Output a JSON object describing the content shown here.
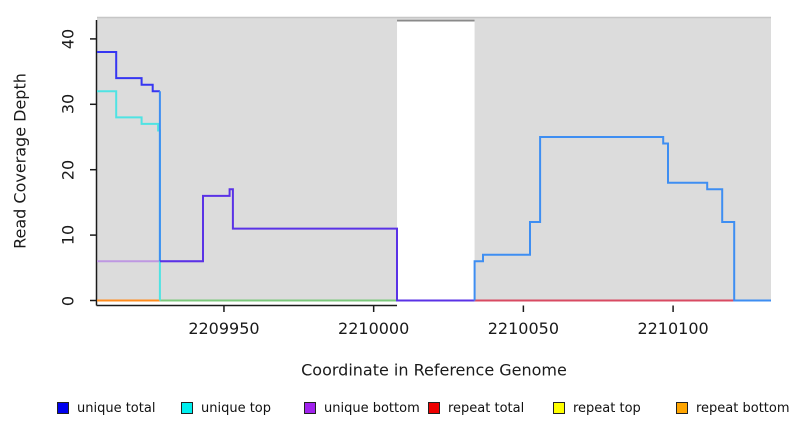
{
  "chart_data": {
    "type": "line",
    "subtype": "step-coverage",
    "title": "",
    "xlabel": "Coordinate in Reference Genome",
    "ylabel": "Read Coverage Depth",
    "xlim": [
      2209907.6,
      2210132.7
    ],
    "ylim": [
      0,
      43.2
    ],
    "x_ticks": [
      "2209950",
      "2210000",
      "2210050",
      "2210100"
    ],
    "x_tick_values": [
      2209950,
      2210000,
      2210050,
      2210100
    ],
    "y_ticks": [
      "0",
      "10",
      "20",
      "30",
      "40"
    ],
    "y_tick_values": [
      0,
      10,
      20,
      30,
      40
    ],
    "grid": false,
    "panel_background": "#DCDCDC",
    "panel_top_edge_color": "#C6C6C6",
    "gap_region": {
      "from": 2210007.8,
      "to": 2210033.7,
      "fill": "#FFFFFF",
      "top_border_color": "#8A8A8A"
    },
    "legend_position": "bottom",
    "legend": [
      {
        "label": "unique total",
        "color": "#0000EE"
      },
      {
        "label": "unique top",
        "color": "#00EEEE"
      },
      {
        "label": "unique bottom",
        "color": "#A122EE"
      },
      {
        "label": "repeat total",
        "color": "#EE0000"
      },
      {
        "label": "repeat top",
        "color": "#FFFF00"
      },
      {
        "label": "repeat bottom",
        "color": "#FFA500"
      }
    ],
    "series": [
      {
        "name": "unique-bottom-level-6",
        "legend_ref": "unique bottom",
        "color": "#BE98E2",
        "points": [
          [
            2209907.6,
            6
          ],
          [
            2209943,
            6
          ]
        ]
      },
      {
        "name": "repeat-bottom-zero",
        "legend_ref": "repeat bottom",
        "color": "#FF8C1E",
        "points": [
          [
            2209907.6,
            0
          ],
          [
            2209928.6,
            0
          ]
        ]
      },
      {
        "name": "zero-line-mid",
        "legend_ref": null,
        "color": "#7CC87C",
        "points": [
          [
            2209928.6,
            0
          ],
          [
            2210007.8,
            0
          ]
        ]
      },
      {
        "name": "repeat-total-zero",
        "legend_ref": "repeat total",
        "color": "#D84A62",
        "points": [
          [
            2210033.7,
            0
          ],
          [
            2210132.7,
            0
          ]
        ]
      },
      {
        "name": "unique-top",
        "legend_ref": "unique top",
        "color": "#4FE3E3",
        "points": [
          [
            2209907.6,
            32
          ],
          [
            2209914,
            32
          ],
          [
            2209914,
            28
          ],
          [
            2209922.5,
            28
          ],
          [
            2209922.5,
            27
          ],
          [
            2209928,
            27
          ],
          [
            2209928,
            26
          ],
          [
            2209928.6,
            26
          ],
          [
            2209928.6,
            0
          ]
        ]
      },
      {
        "name": "unique-total-left",
        "legend_ref": "unique total",
        "color": "#3636F2",
        "points": [
          [
            2209907.6,
            38
          ],
          [
            2209914,
            38
          ],
          [
            2209914,
            34
          ],
          [
            2209922.5,
            34
          ],
          [
            2209922.5,
            33
          ],
          [
            2209926.2,
            33
          ],
          [
            2209926.2,
            32
          ],
          [
            2209928.6,
            32
          ]
        ]
      },
      {
        "name": "unique-total-drop",
        "legend_ref": "unique total",
        "color": "#3E8EF2",
        "points": [
          [
            2209928.6,
            32
          ],
          [
            2209928.6,
            6
          ]
        ]
      },
      {
        "name": "unique-total-mid",
        "legend_ref": "unique total",
        "color": "#5A32E6",
        "points": [
          [
            2209928.6,
            6
          ],
          [
            2209943,
            6
          ],
          [
            2209943,
            16
          ],
          [
            2209951.9,
            16
          ],
          [
            2209951.9,
            17
          ],
          [
            2209953,
            17
          ],
          [
            2209953,
            11
          ],
          [
            2210007.8,
            11
          ],
          [
            2210007.8,
            0
          ],
          [
            2210033.7,
            0
          ]
        ]
      },
      {
        "name": "unique-total-right",
        "legend_ref": "unique total",
        "color": "#3E8EF2",
        "points": [
          [
            2210033.7,
            0
          ],
          [
            2210033.7,
            6
          ],
          [
            2210036.5,
            6
          ],
          [
            2210036.5,
            7
          ],
          [
            2210052.2,
            7
          ],
          [
            2210052.2,
            12
          ],
          [
            2210055.6,
            12
          ],
          [
            2210055.6,
            25
          ],
          [
            2210096.7,
            25
          ],
          [
            2210096.7,
            24
          ],
          [
            2210098.3,
            24
          ],
          [
            2210098.3,
            18
          ],
          [
            2210111.4,
            18
          ],
          [
            2210111.4,
            17
          ],
          [
            2210116.4,
            17
          ],
          [
            2210116.4,
            12
          ],
          [
            2210120.4,
            12
          ],
          [
            2210120.4,
            0
          ],
          [
            2210132.7,
            0
          ]
        ]
      }
    ]
  }
}
